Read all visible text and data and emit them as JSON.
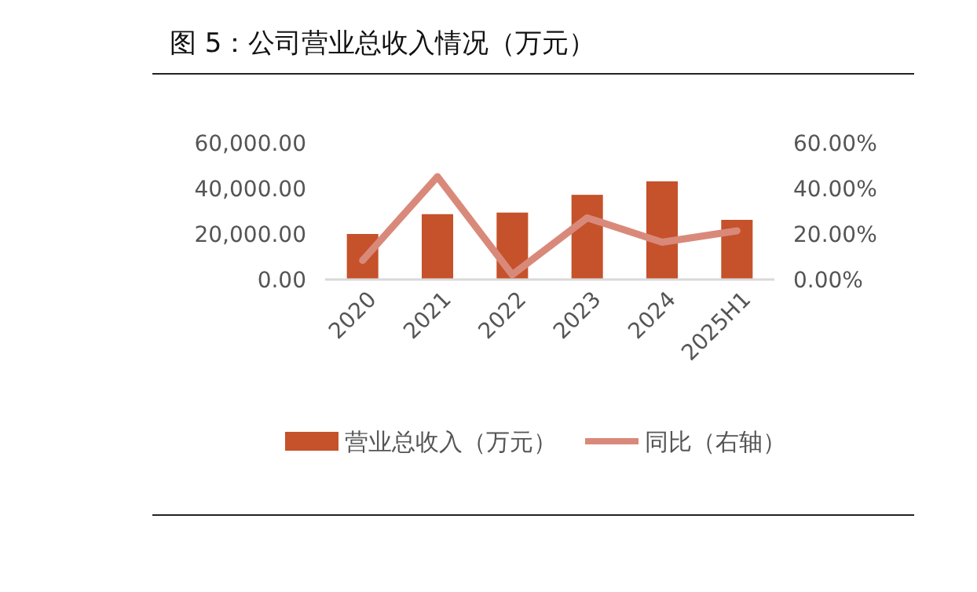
{
  "chart_data": {
    "type": "bar",
    "title": "图 5：公司营业总收入情况（万元）",
    "categories": [
      "2020",
      "2021",
      "2022",
      "2023",
      "2024",
      "2025H1"
    ],
    "series": [
      {
        "name": "营业总收入（万元）",
        "color": "#c5522a",
        "values": [
          20000,
          28700,
          29400,
          37200,
          43100,
          26200
        ]
      },
      {
        "name": "同比（右轴）",
        "type": "line",
        "axis": "y2",
        "color": "#d9897a",
        "values": [
          8.4,
          45.2,
          2.1,
          27.1,
          16.4,
          21.4
        ]
      }
    ],
    "ylim": [
      0,
      60000
    ],
    "yticks": [
      {
        "value": 0,
        "label": "0.00"
      },
      {
        "value": 20000,
        "label": "20,000.00"
      },
      {
        "value": 40000,
        "label": "40,000.00"
      },
      {
        "value": 60000,
        "label": "60,000.00"
      }
    ],
    "y2lim": [
      0,
      60
    ],
    "y2ticks": [
      {
        "value": 0,
        "label": "0.00%"
      },
      {
        "value": 20,
        "label": "20.00%"
      },
      {
        "value": 40,
        "label": "40.00%"
      },
      {
        "value": 60,
        "label": "60.00%"
      }
    ],
    "grid": false,
    "legend": "bottom",
    "marker": "none",
    "line_style": "solid"
  }
}
